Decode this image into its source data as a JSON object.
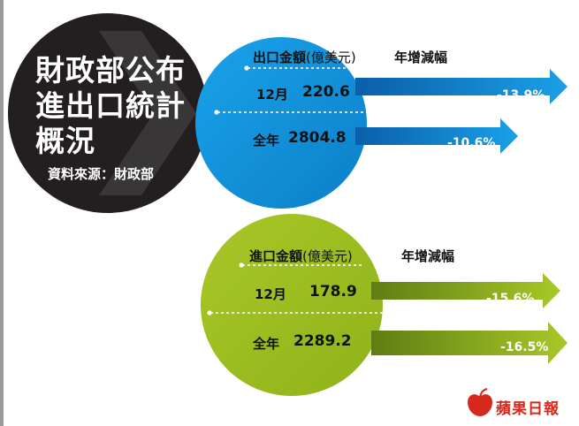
{
  "title_lines": [
    "財政部公布",
    "進出口統計",
    "概況"
  ],
  "source": "資料來源：財政部",
  "export": {
    "header_main": "出口金額",
    "header_unit": "(億美元)",
    "growth_header": "年增減幅",
    "rows": [
      {
        "label": "12月",
        "value": "220.6",
        "change": "-13.9%"
      },
      {
        "label": "全年",
        "value": "2804.8",
        "change": "-10.6%"
      }
    ]
  },
  "import": {
    "header_main": "進口金額",
    "header_unit": "(億美元)",
    "growth_header": "年增減幅",
    "rows": [
      {
        "label": "12月",
        "value": "178.9",
        "change": "-15.6%"
      },
      {
        "label": "全年",
        "value": "2289.2",
        "change": "-16.5%"
      }
    ]
  },
  "logo": "蘋果日報",
  "colors": {
    "dark_circle": "#231f20",
    "export_blue": "#0f8fd6",
    "import_green": "#9fbf1f",
    "logo_red": "#d6281c"
  }
}
